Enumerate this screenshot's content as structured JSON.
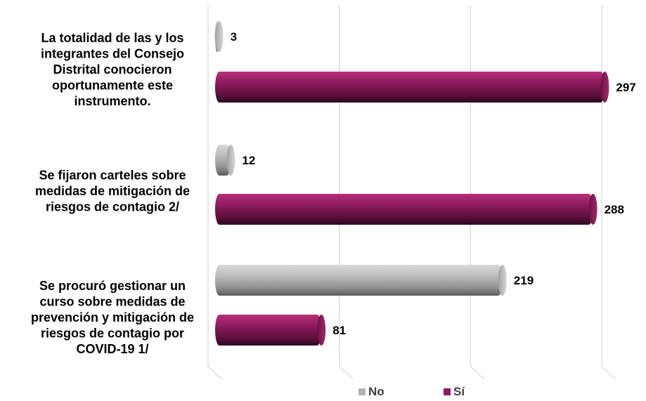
{
  "chart_data": {
    "type": "bar",
    "orientation": "horizontal",
    "categories": [
      [
        "La totalidad de las y los",
        "integrantes del Consejo",
        "Distrital conocieron",
        "oportunamente este",
        "instrumento."
      ],
      [
        "Se fijaron carteles sobre",
        "medidas de mitigación de",
        "riesgos de contagio 2/"
      ],
      [
        "Se procuró gestionar un",
        "curso sobre medidas de",
        "prevención y mitigación de",
        "riesgos de contagio por",
        "COVID-19 1/"
      ]
    ],
    "series": [
      {
        "name": "No",
        "color": "#b3b3b3",
        "values": [
          3,
          12,
          219
        ]
      },
      {
        "name": "Sí",
        "color": "#8c1a5c",
        "values": [
          297,
          288,
          81
        ]
      }
    ],
    "xlim": [
      0,
      300
    ],
    "grid": true,
    "legend": "bottom"
  }
}
